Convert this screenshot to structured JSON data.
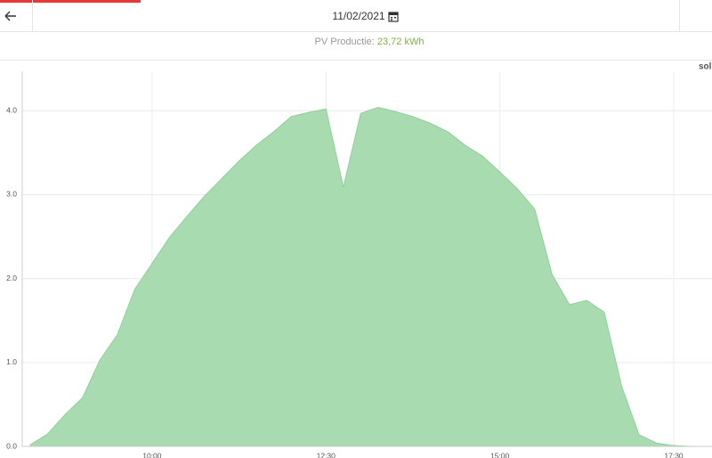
{
  "header": {
    "date": "11/02/2021",
    "summary_label": "PV Productie:",
    "summary_value": "23,72 kWh"
  },
  "corner_text": "sol",
  "chart_data": {
    "type": "area",
    "color": "#a8dcb0",
    "grid": true,
    "x": [
      "08:15",
      "08:30",
      "08:45",
      "09:00",
      "09:15",
      "09:30",
      "09:45",
      "10:00",
      "10:15",
      "10:30",
      "10:45",
      "11:00",
      "11:15",
      "11:30",
      "11:45",
      "12:00",
      "12:15",
      "12:30",
      "12:45",
      "13:00",
      "13:15",
      "13:30",
      "13:45",
      "14:00",
      "14:15",
      "14:30",
      "14:45",
      "15:00",
      "15:15",
      "15:30",
      "15:45",
      "16:00",
      "16:15",
      "16:30",
      "16:45",
      "17:00",
      "17:15",
      "17:30",
      "17:45",
      "18:00"
    ],
    "values": [
      0.02,
      0.15,
      0.38,
      0.58,
      1.03,
      1.33,
      1.87,
      2.18,
      2.49,
      2.74,
      2.98,
      3.19,
      3.4,
      3.59,
      3.75,
      3.93,
      3.98,
      4.02,
      3.09,
      3.97,
      4.04,
      3.99,
      3.93,
      3.85,
      3.75,
      3.59,
      3.46,
      3.27,
      3.07,
      2.83,
      2.05,
      1.69,
      1.74,
      1.6,
      0.72,
      0.14,
      0.04,
      0.01,
      0,
      0
    ],
    "xlim": [
      "08:08",
      "18:03"
    ],
    "xticks": [
      "10:00",
      "12:30",
      "15:00",
      "17:30"
    ],
    "ylim": [
      0,
      4.47
    ],
    "yticks": [
      {
        "value": 0,
        "label": "0.0"
      },
      {
        "value": 1,
        "label": "1.0"
      },
      {
        "value": 2,
        "label": "2.0"
      },
      {
        "value": 3,
        "label": "3.0"
      },
      {
        "value": 4,
        "label": "4.0"
      }
    ]
  }
}
